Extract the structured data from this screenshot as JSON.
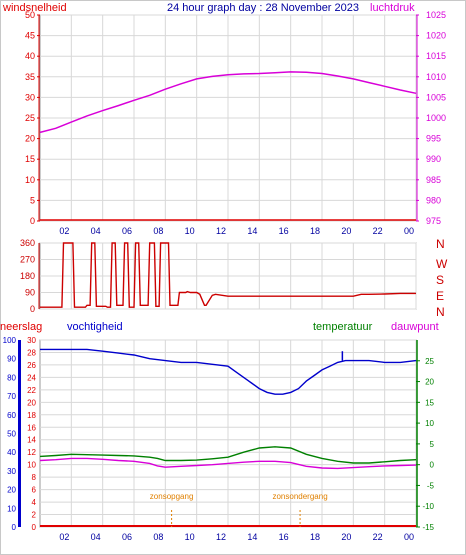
{
  "header": {
    "title": "24 hour graph day : 28 November 2023",
    "left_label": "windsnelheid",
    "right_label": "luchtdruk"
  },
  "colors": {
    "wind": "#e00000",
    "pressure": "#d800d8",
    "direction": "#cc0000",
    "rain": "#e00000",
    "humidity": "#0000cc",
    "temperature": "#008000",
    "dewpoint": "#d800d8",
    "sun": "#e08000",
    "grid": "#d8d8d8",
    "title": "#0000a0"
  },
  "x_ticks": [
    "02",
    "04",
    "06",
    "08",
    "10",
    "12",
    "14",
    "16",
    "18",
    "20",
    "22",
    "00"
  ],
  "chart_data": [
    {
      "type": "line",
      "id": "wind-pressure",
      "xlim": [
        0,
        24
      ],
      "left_axis": {
        "label": "windsnelheid",
        "ylim": [
          0,
          50
        ],
        "ticks": [
          0,
          5,
          10,
          15,
          20,
          25,
          30,
          35,
          40,
          45,
          50
        ]
      },
      "right_axis": {
        "label": "luchtdruk",
        "ylim": [
          975,
          1025
        ],
        "ticks": [
          975,
          980,
          985,
          990,
          995,
          1000,
          1005,
          1010,
          1015,
          1020,
          1025
        ]
      },
      "series": [
        {
          "name": "luchtdruk",
          "axis": "right",
          "x": [
            0,
            1,
            2,
            3,
            4,
            5,
            6,
            7,
            8,
            9,
            10,
            11,
            12,
            13,
            14,
            15,
            16,
            17,
            18,
            19,
            20,
            21,
            22,
            23,
            24
          ],
          "y": [
            996.5,
            997.5,
            999.0,
            1000.5,
            1001.8,
            1003.0,
            1004.3,
            1005.5,
            1007.0,
            1008.3,
            1009.5,
            1010.1,
            1010.5,
            1010.7,
            1010.8,
            1011.0,
            1011.2,
            1011.1,
            1010.8,
            1010.2,
            1009.5,
            1008.6,
            1007.7,
            1006.8,
            1006.0
          ]
        },
        {
          "name": "windsnelheid",
          "axis": "left",
          "x": [
            0,
            24
          ],
          "y": [
            0,
            0
          ]
        }
      ]
    },
    {
      "type": "line",
      "id": "wind-direction",
      "xlim": [
        0,
        24
      ],
      "left_axis": {
        "ylim": [
          0,
          360
        ],
        "ticks": [
          0,
          90,
          180,
          270,
          360
        ]
      },
      "right_labels": [
        "N",
        "W",
        "S",
        "E",
        "N"
      ],
      "series": [
        {
          "name": "windrichting",
          "x": [
            0,
            1.4,
            1.5,
            2.1,
            2.2,
            2.9,
            3.0,
            3.2,
            3.3,
            3.5,
            3.6,
            4.2,
            4.3,
            4.5,
            4.6,
            4.8,
            4.9,
            5.3,
            5.4,
            5.6,
            5.7,
            6.0,
            6.1,
            6.3,
            6.4,
            6.9,
            7.0,
            7.3,
            7.4,
            7.6,
            7.7,
            8.2,
            8.3,
            8.8,
            8.9,
            9.3,
            9.4,
            9.6,
            9.7,
            10.0,
            10.2,
            10.5,
            10.6,
            11.0,
            11.2,
            12.0,
            13,
            14,
            15,
            16,
            17,
            18,
            19,
            20,
            20.5,
            21,
            22,
            23,
            24
          ],
          "y": [
            10,
            10,
            360,
            360,
            10,
            10,
            20,
            20,
            360,
            360,
            15,
            15,
            10,
            10,
            360,
            360,
            20,
            20,
            360,
            360,
            10,
            10,
            360,
            360,
            20,
            20,
            360,
            360,
            15,
            15,
            360,
            360,
            20,
            20,
            90,
            90,
            95,
            90,
            90,
            90,
            80,
            20,
            20,
            75,
            80,
            70,
            70,
            70,
            70,
            70,
            70,
            70,
            70,
            70,
            80,
            80,
            82,
            85,
            85
          ]
        }
      ]
    },
    {
      "type": "line",
      "id": "climate",
      "xlim": [
        0,
        24
      ],
      "rain_axis": {
        "label": "neerslag",
        "ylim": [
          0,
          100
        ],
        "ticks": [
          0,
          10,
          20,
          30,
          40,
          50,
          60,
          70,
          80,
          90,
          100
        ]
      },
      "humidity_axis": {
        "label": "vochtigheid",
        "ylim": [
          0,
          30
        ],
        "ticks": [
          0,
          2,
          4,
          6,
          8,
          10,
          12,
          14,
          16,
          18,
          20,
          22,
          24,
          26,
          28,
          30
        ]
      },
      "temp_axis": {
        "label": "temperatuur",
        "ylim": [
          -15,
          30
        ],
        "ticks": [
          -15,
          -10,
          -5,
          0,
          5,
          10,
          15,
          20,
          25
        ]
      },
      "dewpoint_label": "dauwpunt",
      "series": [
        {
          "name": "vochtigheid",
          "axis": "humidity",
          "x": [
            0,
            1,
            2,
            3,
            4,
            5,
            6,
            6.5,
            7,
            8,
            9,
            10,
            11,
            12,
            12.5,
            13,
            13.5,
            14,
            14.5,
            15,
            15.5,
            16,
            16.5,
            17,
            17.5,
            18,
            18.5,
            19,
            19.5,
            20,
            21,
            22,
            23,
            24
          ],
          "y": [
            95,
            95,
            95,
            95,
            94,
            93,
            92,
            91,
            90,
            89,
            88,
            88,
            87,
            86,
            83,
            80,
            77,
            74,
            72,
            71,
            71,
            72,
            74,
            78,
            81,
            84,
            86,
            88,
            89,
            89,
            89,
            88,
            88,
            89
          ]
        },
        {
          "name": "temperatuur",
          "axis": "temp",
          "x": [
            0,
            1,
            2,
            3,
            4,
            5,
            6,
            7,
            7.5,
            8,
            9,
            10,
            11,
            12,
            13,
            14,
            15,
            16,
            17,
            18,
            19,
            20,
            21,
            22,
            23,
            24
          ],
          "y": [
            2.0,
            2.2,
            2.5,
            2.4,
            2.3,
            2.2,
            2.1,
            1.8,
            1.5,
            1.0,
            1.0,
            1.1,
            1.4,
            1.8,
            3.0,
            4.0,
            4.3,
            4.0,
            2.5,
            1.5,
            0.8,
            0.4,
            0.4,
            0.7,
            1.0,
            1.2
          ]
        },
        {
          "name": "dauwpunt",
          "axis": "temp",
          "x": [
            0,
            1,
            2,
            3,
            4,
            5,
            6,
            7,
            7.5,
            8,
            9,
            10,
            11,
            12,
            13,
            14,
            15,
            16,
            17,
            18,
            19,
            20,
            21,
            22,
            23,
            24
          ],
          "y": [
            1.0,
            1.2,
            1.5,
            1.5,
            1.3,
            1.0,
            0.8,
            0.3,
            -0.3,
            -0.6,
            -0.4,
            -0.2,
            0.0,
            0.3,
            0.6,
            0.8,
            0.8,
            0.5,
            -0.4,
            -0.8,
            -0.9,
            -0.7,
            -0.5,
            -0.3,
            -0.2,
            -0.1
          ]
        },
        {
          "name": "neerslag",
          "axis": "rain",
          "x": [
            0,
            24
          ],
          "y": [
            0,
            0
          ]
        }
      ],
      "annotations": [
        {
          "text": "zonsopgang",
          "x": 8.4
        },
        {
          "text": "zonsondergang",
          "x": 16.6
        }
      ]
    }
  ]
}
